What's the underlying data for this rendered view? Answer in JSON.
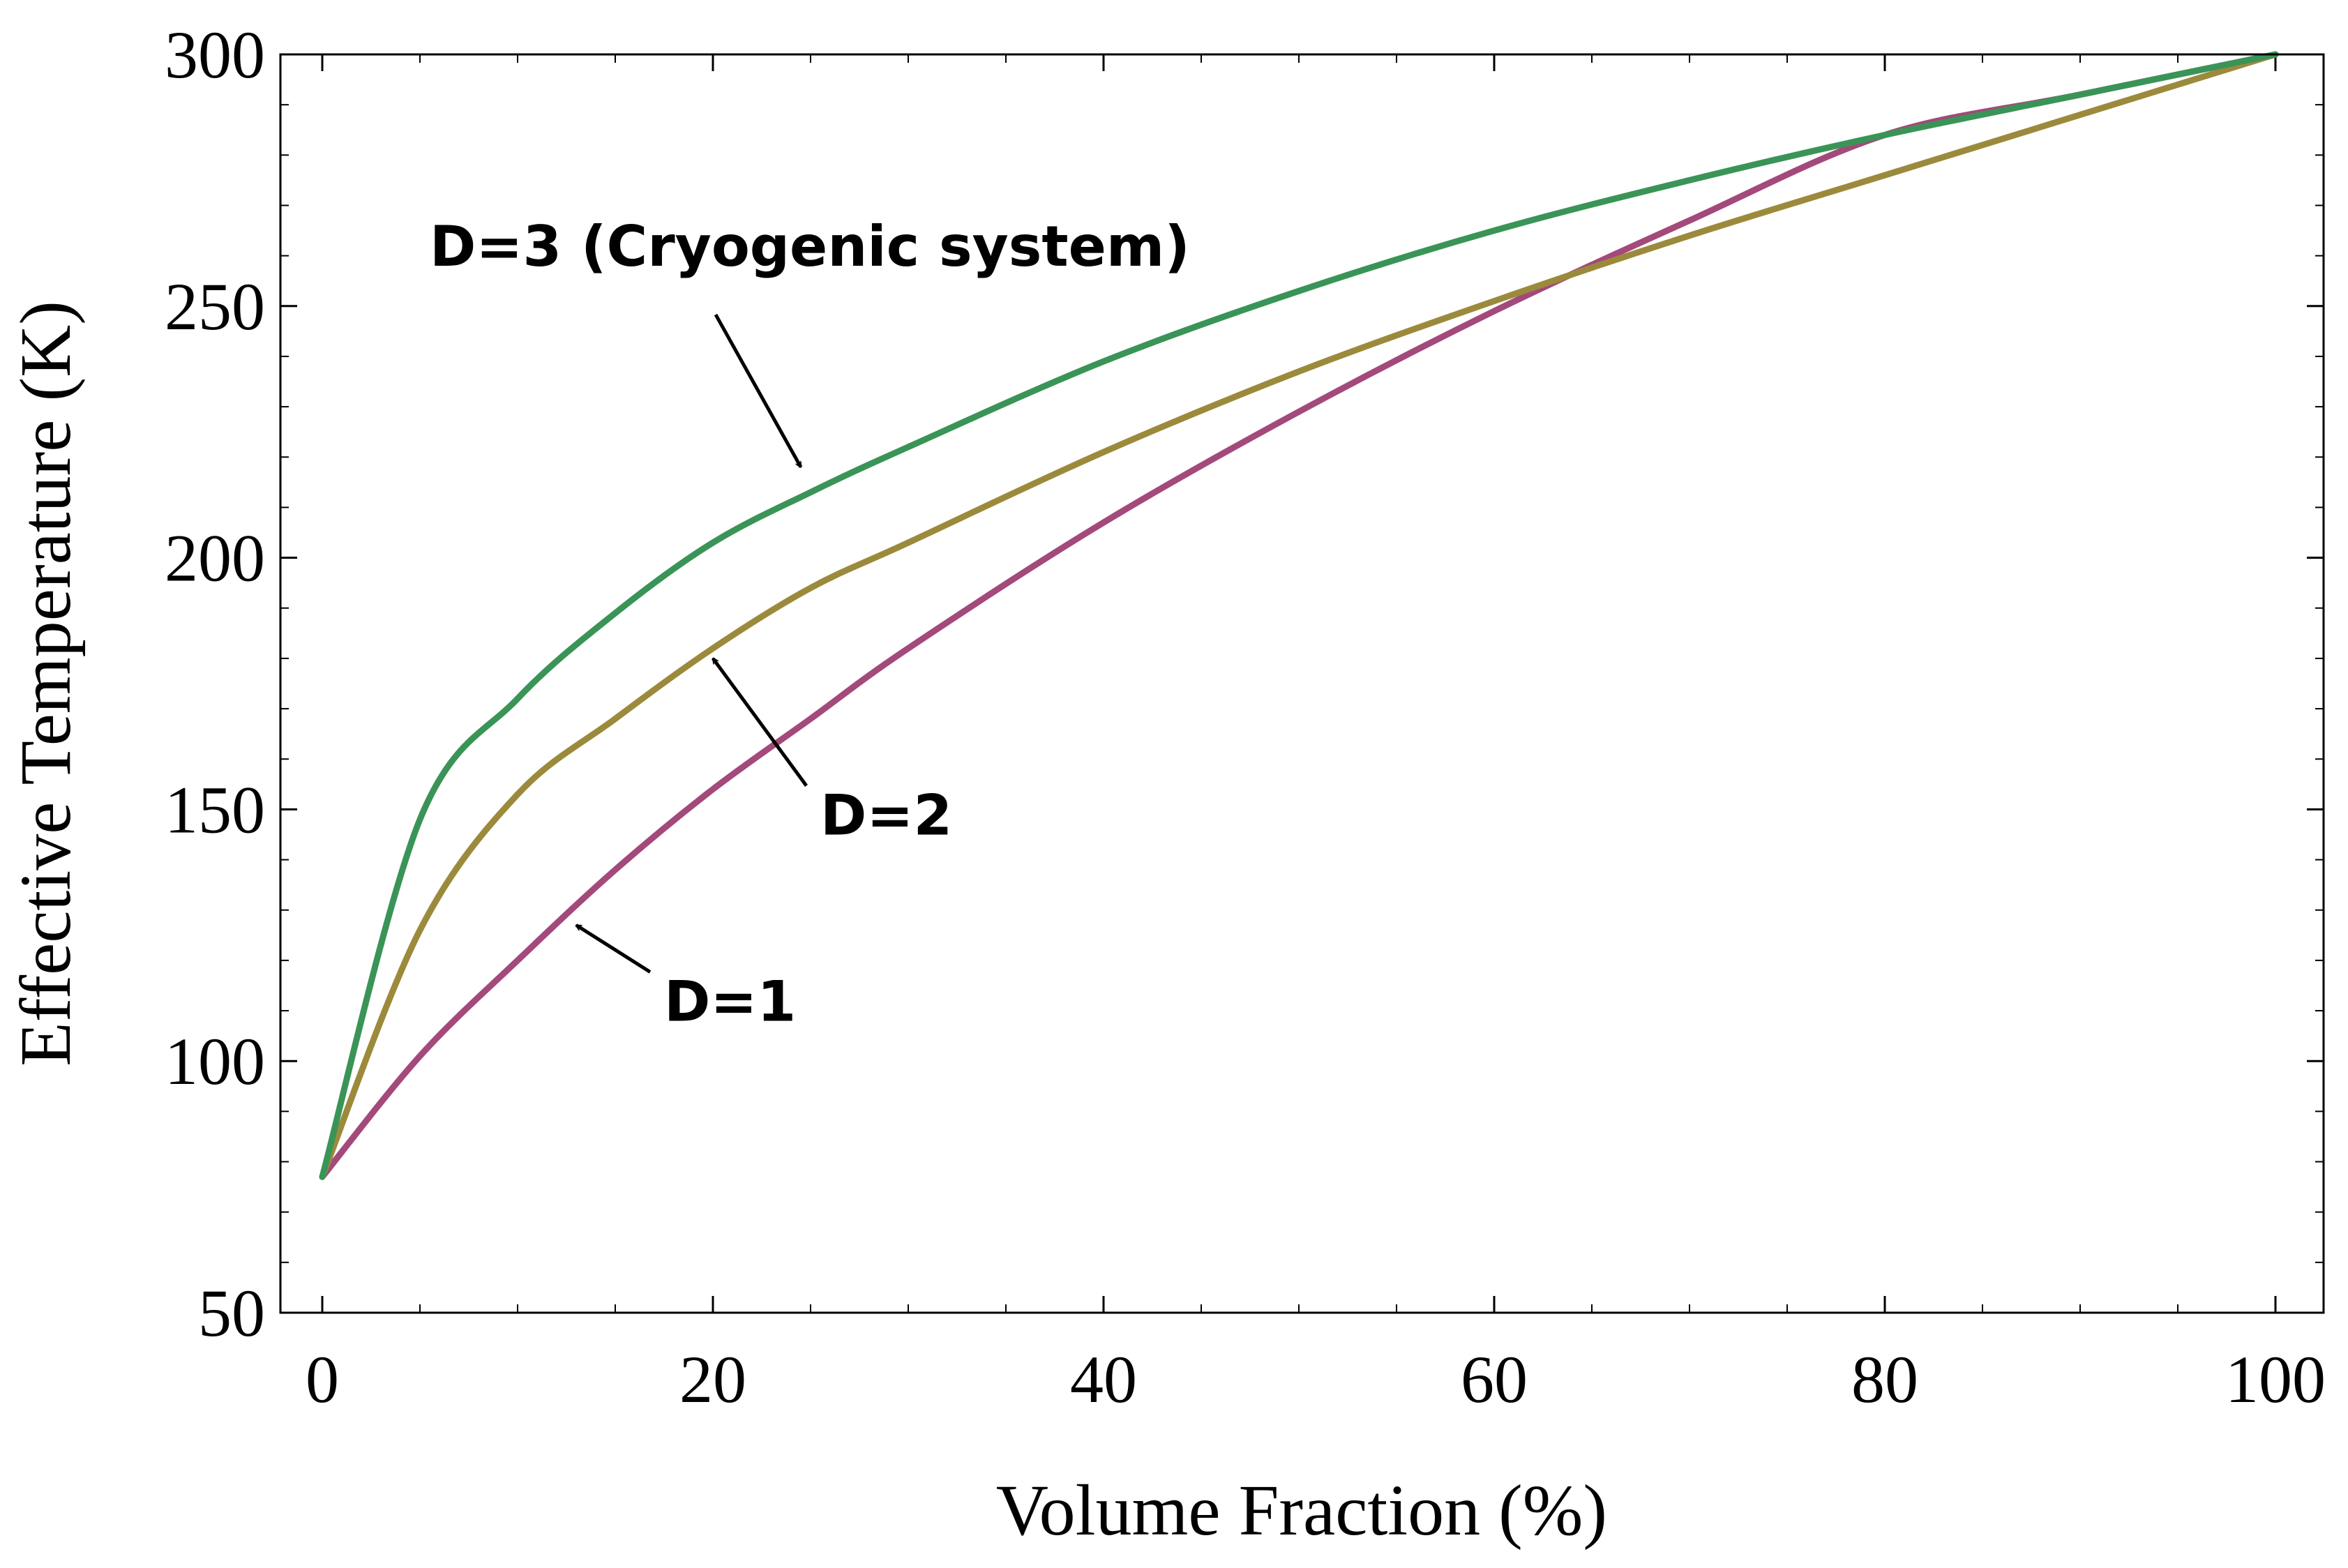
{
  "chart_data": {
    "type": "line",
    "title": "",
    "xlabel": "Volume Fraction (%)",
    "ylabel": "Effective  Temperature (K)",
    "xlim": [
      0,
      100
    ],
    "ylim": [
      50,
      300
    ],
    "xticks": [
      0,
      20,
      40,
      60,
      80,
      100
    ],
    "yticks": [
      50,
      100,
      150,
      200,
      250,
      300
    ],
    "xtick_labels": [
      "0",
      "20",
      "40",
      "60",
      "80",
      "100"
    ],
    "ytick_labels": [
      "50",
      "100",
      "150",
      "200",
      "250",
      "300"
    ],
    "grid": false,
    "series": [
      {
        "name": "D=1",
        "color": "#a3497b",
        "x": [
          0,
          5,
          10,
          15,
          20,
          25,
          30,
          40,
          50,
          60,
          70,
          80,
          90,
          100
        ],
        "values": [
          77,
          101,
          120,
          138,
          154,
          168,
          182,
          207,
          229,
          249,
          267,
          284,
          292,
          300
        ]
      },
      {
        "name": "D=2",
        "color": "#9c8a3c",
        "x": [
          0,
          5,
          10,
          15,
          20,
          25,
          30,
          40,
          50,
          60,
          70,
          80,
          90,
          100
        ],
        "values": [
          77,
          126,
          153,
          168,
          182,
          194,
          203,
          221,
          237,
          251,
          264,
          276,
          288,
          300
        ]
      },
      {
        "name": "D=3",
        "color": "#3a9457",
        "x": [
          0,
          5,
          10,
          15,
          20,
          25,
          30,
          40,
          50,
          60,
          70,
          80,
          90,
          100
        ],
        "values": [
          77,
          148,
          172,
          189,
          203,
          213,
          222,
          239,
          253,
          265,
          275,
          284,
          292,
          300
        ]
      }
    ],
    "annotations": [
      {
        "text": "D=3 (Cryogenic system)",
        "series": "D=3",
        "target": [
          24.5,
          218
        ],
        "label_at": [
          5.5,
          258
        ]
      },
      {
        "text": "D=2",
        "series": "D=2",
        "target": [
          20,
          180
        ],
        "label_at": [
          25.5,
          145
        ]
      },
      {
        "text": "D=1",
        "series": "D=1",
        "target": [
          13,
          127
        ],
        "label_at": [
          17.5,
          108
        ]
      }
    ]
  }
}
